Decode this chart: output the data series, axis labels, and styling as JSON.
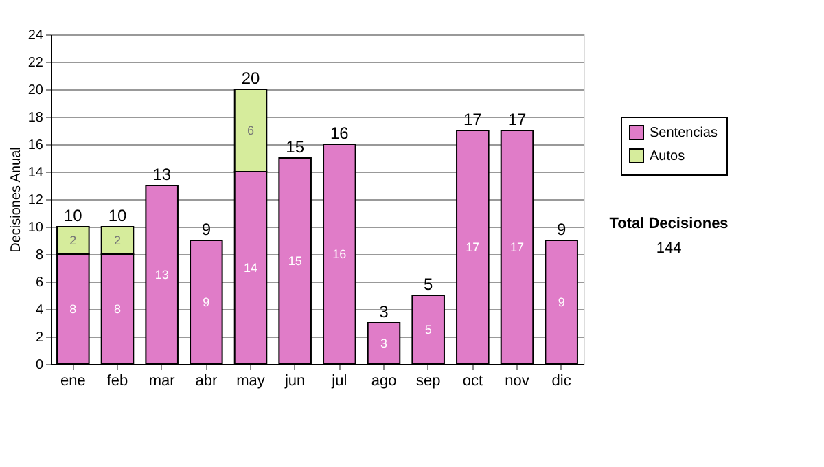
{
  "chart_data": {
    "type": "bar",
    "stacked": true,
    "ylabel": "Decisiones Anual",
    "categories": [
      "ene",
      "feb",
      "mar",
      "abr",
      "may",
      "jun",
      "jul",
      "ago",
      "sep",
      "oct",
      "nov",
      "dic"
    ],
    "series": [
      {
        "name": "Sentencias",
        "color": "#e07cc8",
        "values": [
          8,
          8,
          13,
          9,
          14,
          15,
          16,
          3,
          5,
          17,
          17,
          9
        ]
      },
      {
        "name": "Autos",
        "color": "#d6ec9c",
        "values": [
          2,
          2,
          null,
          null,
          6,
          null,
          null,
          null,
          null,
          null,
          null,
          null
        ]
      }
    ],
    "totals": [
      "10",
      "10",
      "13",
      "9",
      "20",
      "15",
      "16",
      "3",
      "5",
      "17",
      "17",
      "9"
    ],
    "data_labels": true,
    "ylim": [
      0,
      24
    ],
    "yticks": [
      0,
      2,
      4,
      6,
      8,
      10,
      12,
      14,
      16,
      18,
      20,
      22,
      24
    ],
    "grid": "y",
    "legend": "right",
    "annotations": [
      "Total Decisiones",
      "144"
    ]
  }
}
